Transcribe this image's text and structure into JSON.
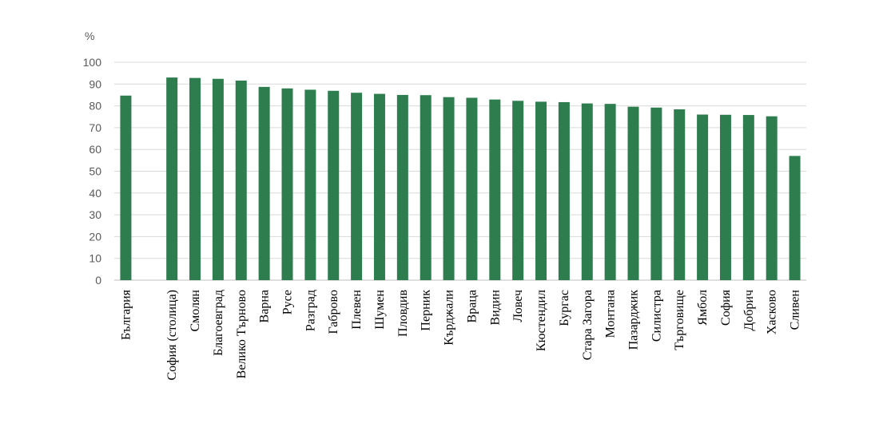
{
  "chart_data": {
    "type": "bar",
    "ylabel": "%",
    "ylim": [
      0,
      100
    ],
    "yticks": [
      0,
      10,
      20,
      30,
      40,
      50,
      60,
      70,
      80,
      90,
      100
    ],
    "grid": true,
    "bar_color": "#2e7d4f",
    "categories": [
      "България",
      "",
      "София (столица)",
      "Смолян",
      "Благоевград",
      "Велико Търново",
      "Варна",
      "Русе",
      "Разград",
      "Габрово",
      "Плевен",
      "Шумен",
      "Пловдив",
      "Перник",
      "Кърджали",
      "Враца",
      "Видин",
      "Ловеч",
      "Кюстендил",
      "Бургас",
      "Стара Загора",
      "Монтана",
      "Пазарджик",
      "Силистра",
      "Търговище",
      "Ямбол",
      "София",
      "Добрич",
      "Хасково",
      "Сливен"
    ],
    "values": [
      84.7,
      null,
      93.0,
      92.8,
      92.4,
      91.6,
      88.7,
      88.0,
      87.4,
      86.9,
      86.0,
      85.5,
      85.0,
      84.9,
      84.0,
      83.7,
      82.9,
      82.3,
      81.9,
      81.7,
      81.1,
      80.9,
      79.6,
      79.2,
      78.4,
      76.0,
      75.9,
      75.8,
      75.2,
      57.0
    ]
  }
}
